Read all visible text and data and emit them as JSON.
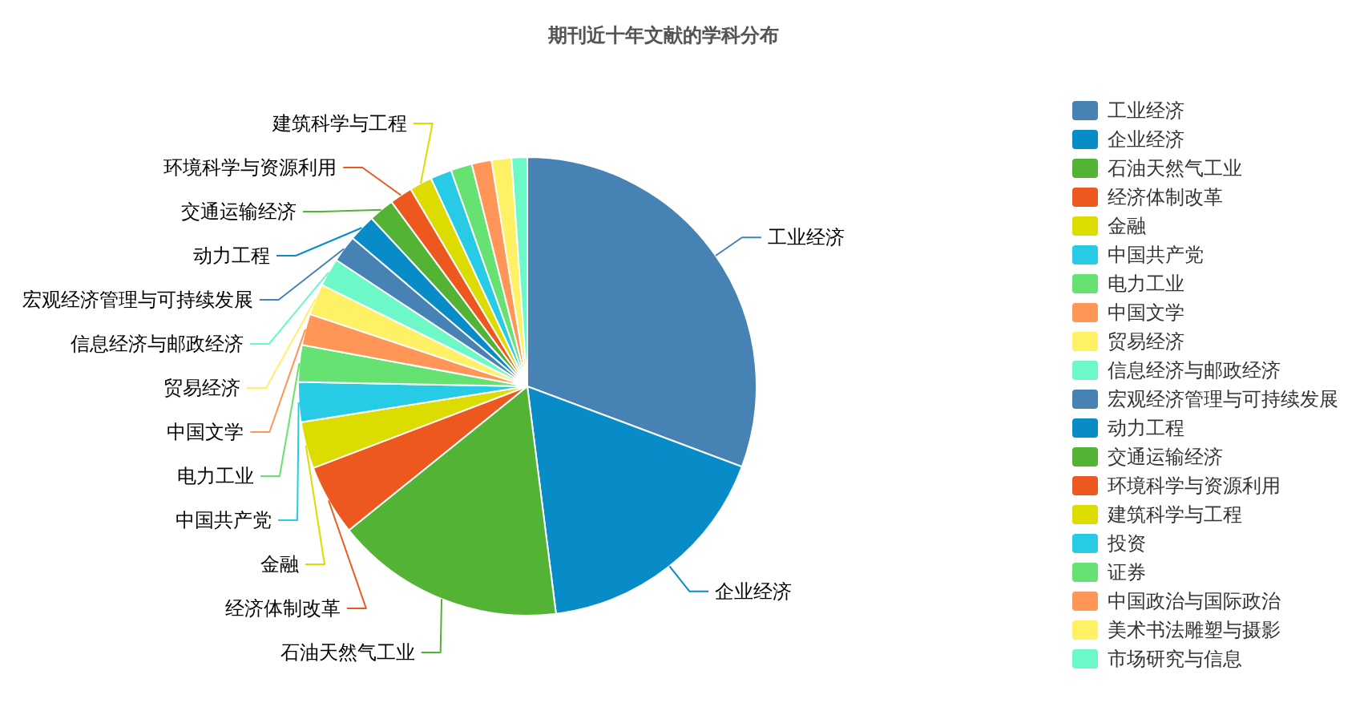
{
  "chart_data": {
    "type": "pie",
    "title": "期刊近十年文献的学科分布",
    "categories": [
      "工业经济",
      "企业经济",
      "石油天然气工业",
      "经济体制改革",
      "金融",
      "中国共产党",
      "电力工业",
      "中国文学",
      "贸易经济",
      "信息经济与邮政经济",
      "宏观经济管理与可持续发展",
      "动力工程",
      "交通运输经济",
      "环境科学与资源利用",
      "建筑科学与工程",
      "投资",
      "证券",
      "中国政治与国际政治",
      "美术书法雕塑与摄影",
      "市场研究与信息"
    ],
    "values": [
      30.7,
      17.3,
      16.2,
      5.0,
      3.3,
      2.8,
      2.6,
      2.2,
      2.2,
      2.0,
      1.9,
      1.9,
      1.8,
      1.6,
      1.6,
      1.5,
      1.5,
      1.4,
      1.4,
      1.1
    ],
    "colors": [
      "#4682b4",
      "#078cc8",
      "#52b334",
      "#ed581f",
      "#dcdc00",
      "#27cbe5",
      "#65e271",
      "#ff9658",
      "#fff166",
      "#6cf9c7",
      "#4682b4",
      "#078cc8",
      "#52b334",
      "#ed581f",
      "#dcdc00",
      "#27cbe5",
      "#65e271",
      "#ff9658",
      "#fff166",
      "#6cf9c7"
    ],
    "legend": "right"
  }
}
